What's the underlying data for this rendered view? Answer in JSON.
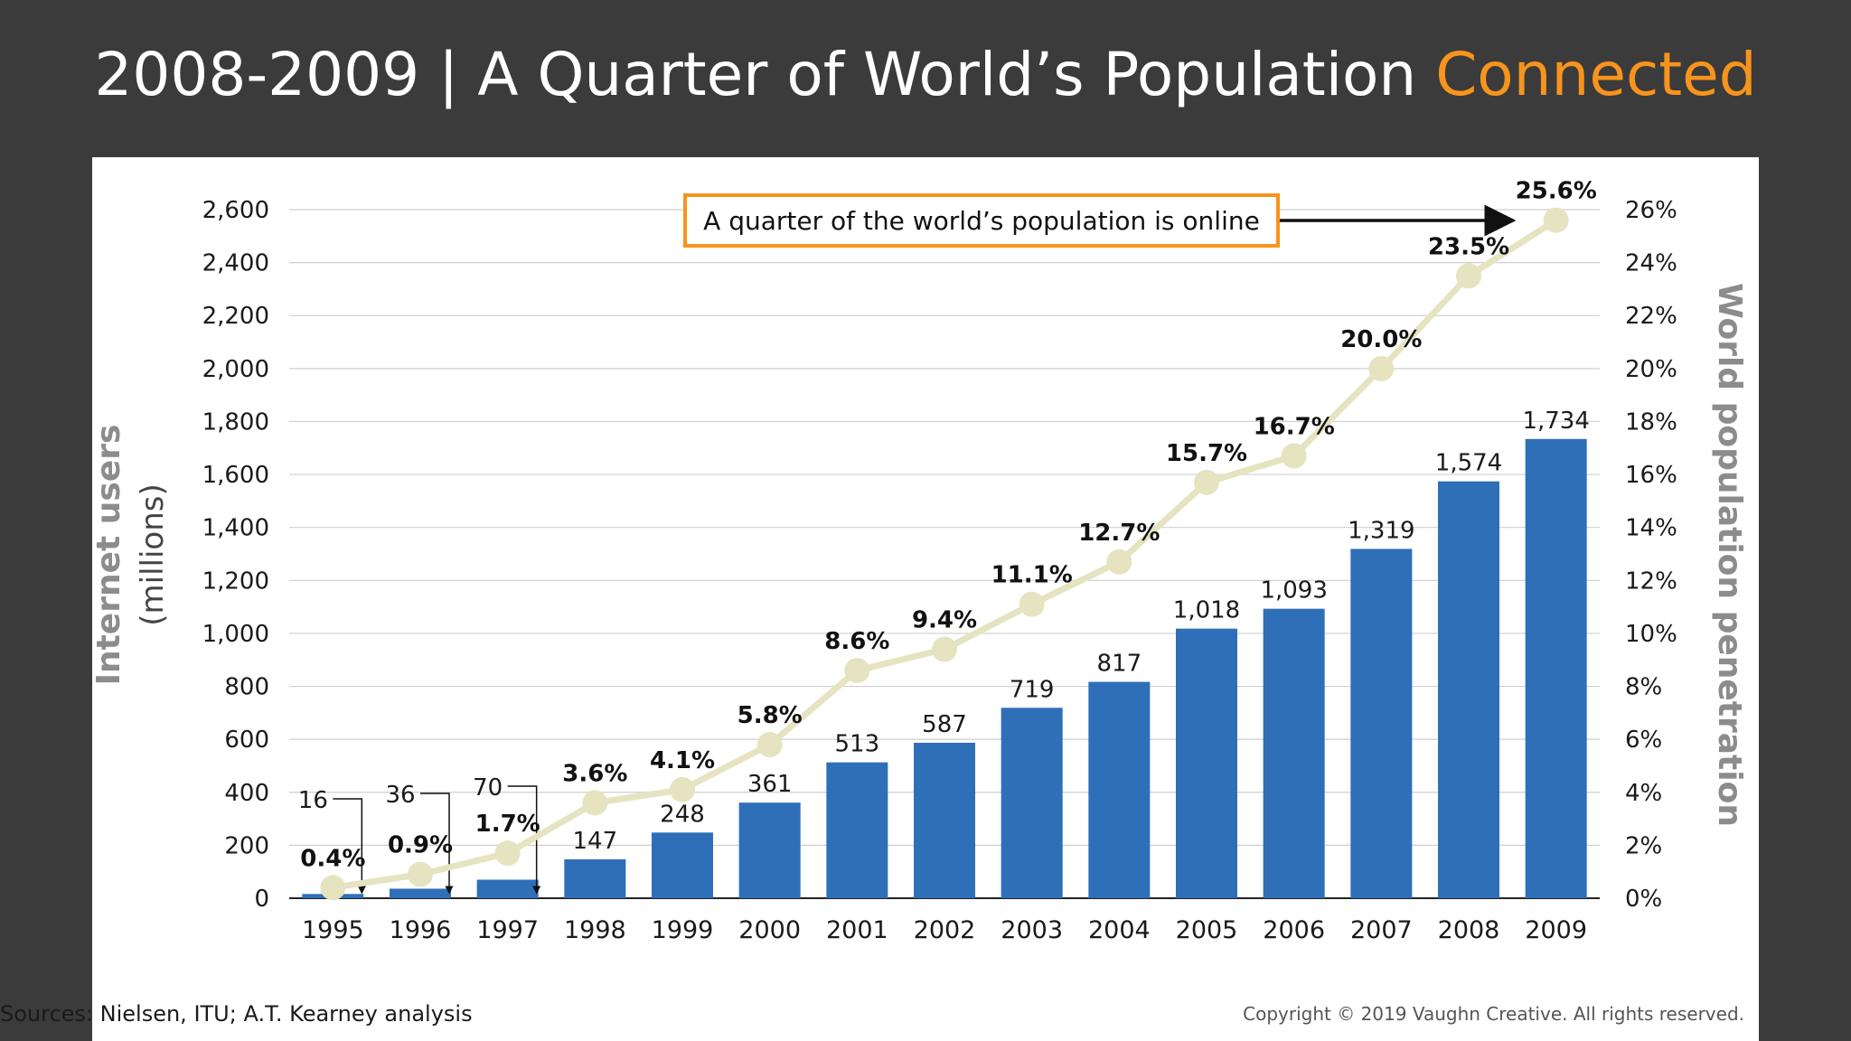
{
  "slide": {
    "title_main": "2008-2009 | A Quarter of World’s Population ",
    "title_accent": "Connected",
    "source": "Sources: Nielsen, ITU; A.T. Kearney analysis",
    "copyright": "Copyright © 2019 Vaughn Creative. All rights reserved."
  },
  "colors": {
    "background": "#3b3b3b",
    "accent": "#f7941d",
    "bar": "#2e6fb8",
    "line": "#e6e3c1",
    "axis_title": "#8c8c8c"
  },
  "chart_data": {
    "type": "bar",
    "categories": [
      "1995",
      "1996",
      "1997",
      "1998",
      "1999",
      "2000",
      "2001",
      "2002",
      "2003",
      "2004",
      "2005",
      "2006",
      "2007",
      "2008",
      "2009"
    ],
    "series": [
      {
        "name": "Internet users",
        "type": "bar",
        "axis": "left",
        "values": [
          16,
          36,
          70,
          147,
          248,
          361,
          513,
          587,
          719,
          817,
          1018,
          1093,
          1319,
          1574,
          1734
        ],
        "labels": [
          "16",
          "36",
          "70",
          "147",
          "248",
          "361",
          "513",
          "587",
          "719",
          "817",
          "1,018",
          "1,093",
          "1,319",
          "1,574",
          "1,734"
        ]
      },
      {
        "name": "World population penetration",
        "type": "line",
        "axis": "right",
        "values": [
          0.4,
          0.9,
          1.7,
          3.6,
          4.1,
          5.8,
          8.6,
          9.4,
          11.1,
          12.7,
          15.7,
          16.7,
          20.0,
          23.5,
          25.6
        ],
        "labels": [
          "0.4%",
          "0.9%",
          "1.7%",
          "3.6%",
          "4.1%",
          "5.8%",
          "8.6%",
          "9.4%",
          "11.1%",
          "12.7%",
          "15.7%",
          "16.7%",
          "20.0%",
          "23.5%",
          "25.6%"
        ]
      }
    ],
    "y_left": {
      "title": "Internet users",
      "subtitle": "(millions)",
      "range": [
        0,
        2600
      ],
      "ticks": [
        "0",
        "200",
        "400",
        "600",
        "800",
        "1,000",
        "1,200",
        "1,400",
        "1,600",
        "1,800",
        "2,000",
        "2,200",
        "2,400",
        "2,600"
      ]
    },
    "y_right": {
      "title": "World population penetration",
      "range": [
        0,
        26
      ],
      "ticks": [
        "0%",
        "2%",
        "4%",
        "6%",
        "8%",
        "10%",
        "12%",
        "14%",
        "16%",
        "18%",
        "20%",
        "22%",
        "24%",
        "26%"
      ]
    },
    "grid": true,
    "annotation": "A quarter of the world’s population is online"
  }
}
